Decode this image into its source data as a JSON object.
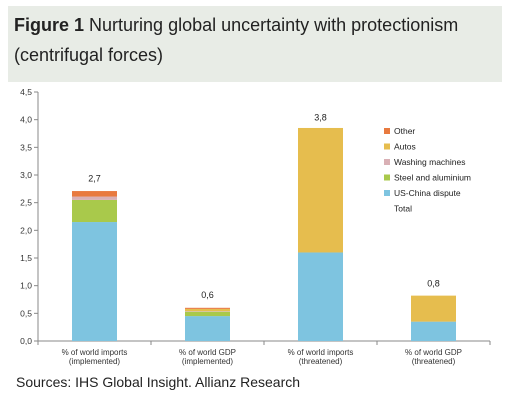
{
  "header": {
    "figure_label": "Figure 1",
    "title_rest": "Nurturing global uncertainty with protectionism",
    "title_line2": "(centrifugal forces)"
  },
  "source": "Sources: IHS Global Insight. Allianz Research",
  "chart_data": {
    "type": "bar",
    "stacked": true,
    "ylim": [
      0,
      4.5
    ],
    "yticks": [
      0,
      0.5,
      1.0,
      1.5,
      2.0,
      2.5,
      3.0,
      3.5,
      4.0,
      4.5
    ],
    "ytick_labels": [
      "0,0",
      "0,5",
      "1,0",
      "1,5",
      "2,0",
      "2,5",
      "3,0",
      "3,5",
      "4,0",
      "4,5"
    ],
    "categories": [
      [
        "% of world imports",
        "(implemented)"
      ],
      [
        "% of world GDP",
        "(implemented)"
      ],
      [
        "% of world imports",
        "(threatened)"
      ],
      [
        "% of world GDP",
        "(threatened)"
      ]
    ],
    "series": [
      {
        "name": "US-China dispute",
        "color": "#7ec4e0",
        "values": [
          2.15,
          0.45,
          1.6,
          0.35
        ]
      },
      {
        "name": "Steel and aluminium",
        "color": "#a9c94b",
        "values": [
          0.4,
          0.08,
          0,
          0
        ]
      },
      {
        "name": "Washing machines",
        "color": "#d9b0b5",
        "values": [
          0.06,
          0.01,
          0,
          0
        ]
      },
      {
        "name": "Autos",
        "color": "#e6bd4e",
        "values": [
          0,
          0.04,
          2.25,
          0.47
        ]
      },
      {
        "name": "Other",
        "color": "#e87a3f",
        "values": [
          0.1,
          0.02,
          0,
          0
        ]
      }
    ],
    "totals": [
      2.7,
      0.6,
      3.8,
      0.8
    ],
    "total_labels": [
      "2,7",
      "0,6",
      "3,8",
      "0,8"
    ],
    "legend": {
      "position": "right",
      "items": [
        {
          "name": "Other",
          "color": "#e87a3f"
        },
        {
          "name": "Autos",
          "color": "#e6bd4e"
        },
        {
          "name": "Washing machines",
          "color": "#d9b0b5"
        },
        {
          "name": "Steel and aluminium",
          "color": "#a9c94b"
        },
        {
          "name": "US-China dispute",
          "color": "#7ec4e0"
        },
        {
          "name": "Total",
          "color": ""
        }
      ]
    },
    "grid": false
  }
}
